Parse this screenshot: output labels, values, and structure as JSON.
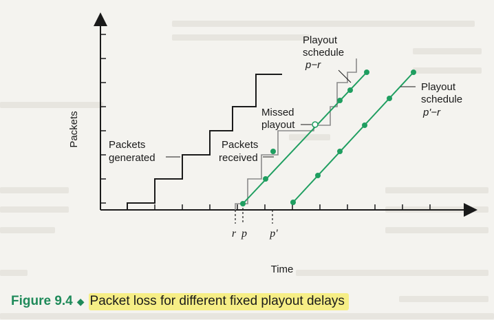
{
  "figure": {
    "axis_y_label": "Packets",
    "axis_x_label": "Time",
    "tick_labels": {
      "r": "r",
      "p": "p",
      "p_prime": "p'"
    },
    "annotations": {
      "packets_generated": [
        "Packets",
        "generated"
      ],
      "packets_received": [
        "Packets",
        "received"
      ],
      "missed_playout": [
        "Missed",
        "playout"
      ],
      "schedule_p": {
        "line1": "Playout",
        "line2": "schedule",
        "line3": "p−r"
      },
      "schedule_p_prime": {
        "line1": "Playout",
        "line2": "schedule",
        "line3": "p'−r"
      }
    },
    "colors": {
      "playout_line": "#1f9e60",
      "generated_line": "#1a1a1a",
      "received_line": "#8a8a8a",
      "caption_accent": "#1f8a5a",
      "caption_highlight": "#f6ee86"
    }
  },
  "caption": {
    "number": "Figure 9.4",
    "separator_icon": "diamond-icon",
    "text": "Packet loss for different fixed playout delays"
  }
}
